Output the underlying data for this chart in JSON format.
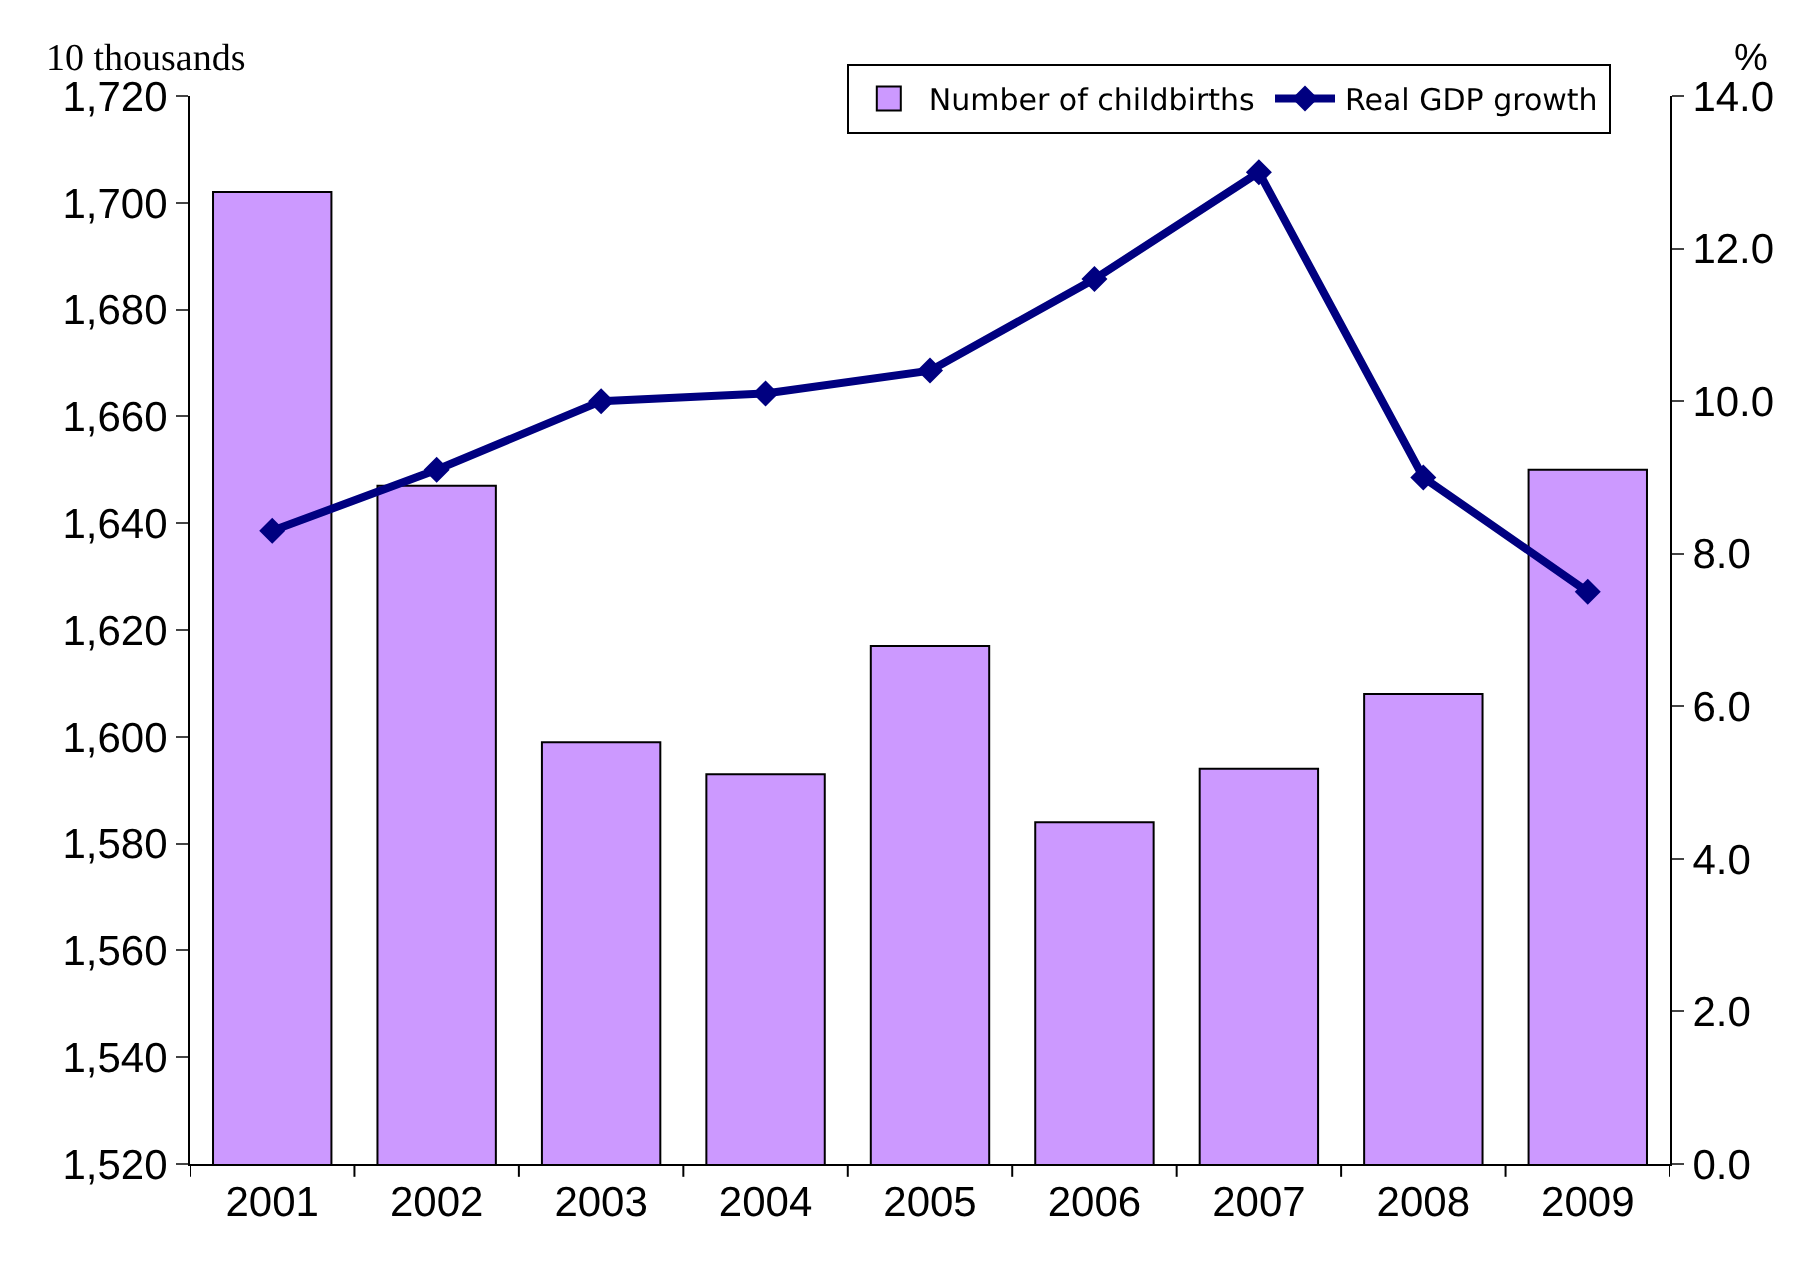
{
  "chart_data": {
    "type": "bar",
    "ylabel": "10 thousands",
    "y2label": "%",
    "categories": [
      "2001",
      "2002",
      "2003",
      "2004",
      "2005",
      "2006",
      "2007",
      "2008",
      "2009"
    ],
    "series": [
      {
        "name": "Number of childbirths",
        "color": "#cc99ff",
        "values": [
          1702,
          1647,
          1599,
          1593,
          1617,
          1584,
          1594,
          1608,
          1650
        ]
      },
      {
        "name": "Real GDP growth",
        "type": "line",
        "axis": "y2",
        "color": "#000080",
        "marker": "diamond",
        "values": [
          8.3,
          9.1,
          10.0,
          10.1,
          10.4,
          11.6,
          13.0,
          9.0,
          7.5
        ]
      }
    ],
    "ylim": [
      1520,
      1720
    ],
    "yticks": [
      {
        "value": 1520,
        "label": "1,520"
      },
      {
        "value": 1540,
        "label": "1,540"
      },
      {
        "value": 1560,
        "label": "1,560"
      },
      {
        "value": 1580,
        "label": "1,580"
      },
      {
        "value": 1600,
        "label": "1,600"
      },
      {
        "value": 1620,
        "label": "1,620"
      },
      {
        "value": 1640,
        "label": "1,640"
      },
      {
        "value": 1660,
        "label": "1,660"
      },
      {
        "value": 1680,
        "label": "1,680"
      },
      {
        "value": 1700,
        "label": "1,700"
      },
      {
        "value": 1720,
        "label": "1,720"
      }
    ],
    "y2lim": [
      0,
      14
    ],
    "y2ticks": [
      {
        "value": 0,
        "label": "0.0"
      },
      {
        "value": 2,
        "label": "2.0"
      },
      {
        "value": 4,
        "label": "4.0"
      },
      {
        "value": 6,
        "label": "6.0"
      },
      {
        "value": 8,
        "label": "8.0"
      },
      {
        "value": 10,
        "label": "10.0"
      },
      {
        "value": 12,
        "label": "12.0"
      },
      {
        "value": 14,
        "label": "14.0"
      }
    ],
    "legend": "top right"
  }
}
